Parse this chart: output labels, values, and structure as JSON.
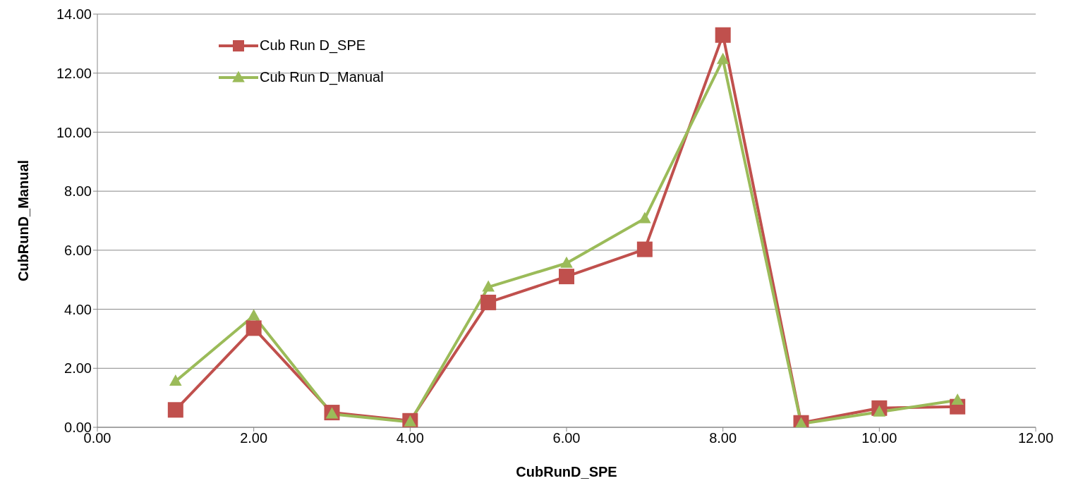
{
  "chart_data": {
    "type": "line",
    "xlabel": "CubRunD_SPE",
    "ylabel": "CubRunD_Manual",
    "x": [
      1,
      2,
      3,
      4,
      5,
      6,
      7,
      8,
      9,
      10,
      11
    ],
    "series": [
      {
        "name": "Cub Run D_SPE",
        "color": "#c0504d",
        "marker": "square",
        "values": [
          0.59,
          3.36,
          0.5,
          0.22,
          4.23,
          5.11,
          6.03,
          13.29,
          0.15,
          0.65,
          0.7
        ]
      },
      {
        "name": "Cub Run D_Manual",
        "color": "#9bbb59",
        "marker": "triangle",
        "values": [
          1.56,
          3.78,
          0.45,
          0.18,
          4.75,
          5.56,
          7.07,
          12.46,
          0.12,
          0.52,
          0.92
        ]
      }
    ],
    "xlim": [
      0,
      12
    ],
    "xticks": [
      {
        "value": 0,
        "label": "0.00"
      },
      {
        "value": 2,
        "label": "2.00"
      },
      {
        "value": 4,
        "label": "4.00"
      },
      {
        "value": 6,
        "label": "6.00"
      },
      {
        "value": 8,
        "label": "8.00"
      },
      {
        "value": 10,
        "label": "10.00"
      },
      {
        "value": 12,
        "label": "12.00"
      }
    ],
    "ylim": [
      0,
      14
    ],
    "yticks": [
      {
        "value": 0,
        "label": "0.00"
      },
      {
        "value": 2,
        "label": "2.00"
      },
      {
        "value": 4,
        "label": "4.00"
      },
      {
        "value": 6,
        "label": "6.00"
      },
      {
        "value": 8,
        "label": "8.00"
      },
      {
        "value": 10,
        "label": "10.00"
      },
      {
        "value": 12,
        "label": "12.00"
      },
      {
        "value": 14,
        "label": "14.00"
      }
    ],
    "grid": "y",
    "legend": "top left",
    "line_style": "solid"
  }
}
